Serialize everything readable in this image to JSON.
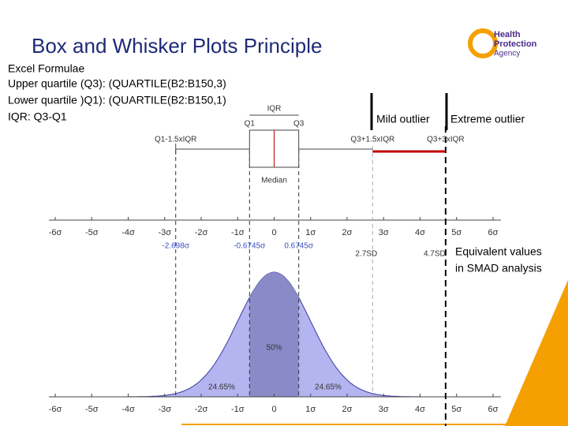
{
  "title": "Box and Whisker Plots Principle",
  "logo": {
    "lines": [
      "Health",
      "Protection",
      "Agency"
    ]
  },
  "formulae": [
    "Excel Formulae",
    "Upper quartile (Q3): (QUARTILE(B2:B150,3)",
    "Lower quartile )Q1): (QUARTILE(B2:B150,1)",
    "IQR: Q3-Q1"
  ],
  "boxplot": {
    "iqr": "IQR",
    "q1": "Q1",
    "q3": "Q3",
    "lower_fence": "Q1-1.5xIQR",
    "upper_fence": "Q3+1.5xIQR",
    "extreme_fence": "Q3+3xIQR",
    "median": "Median"
  },
  "outliers": {
    "mild": "Mild outlier",
    "extreme": "Extreme outlier"
  },
  "axis_ticks": [
    "-6σ",
    "-5σ",
    "-4σ",
    "-3σ",
    "-2σ",
    "-1σ",
    "0",
    "1σ",
    "2σ",
    "3σ",
    "4σ",
    "5σ",
    "6σ"
  ],
  "sigma_labels": [
    "-2.698σ",
    "-0.6745σ",
    "0.6745σ"
  ],
  "sd_labels": [
    "2.7SD",
    "4.7SD"
  ],
  "equivalent": [
    "Equivalent values",
    "in SMAD analysis"
  ],
  "areas": [
    "50%",
    "24.65%",
    "24.65%"
  ]
}
